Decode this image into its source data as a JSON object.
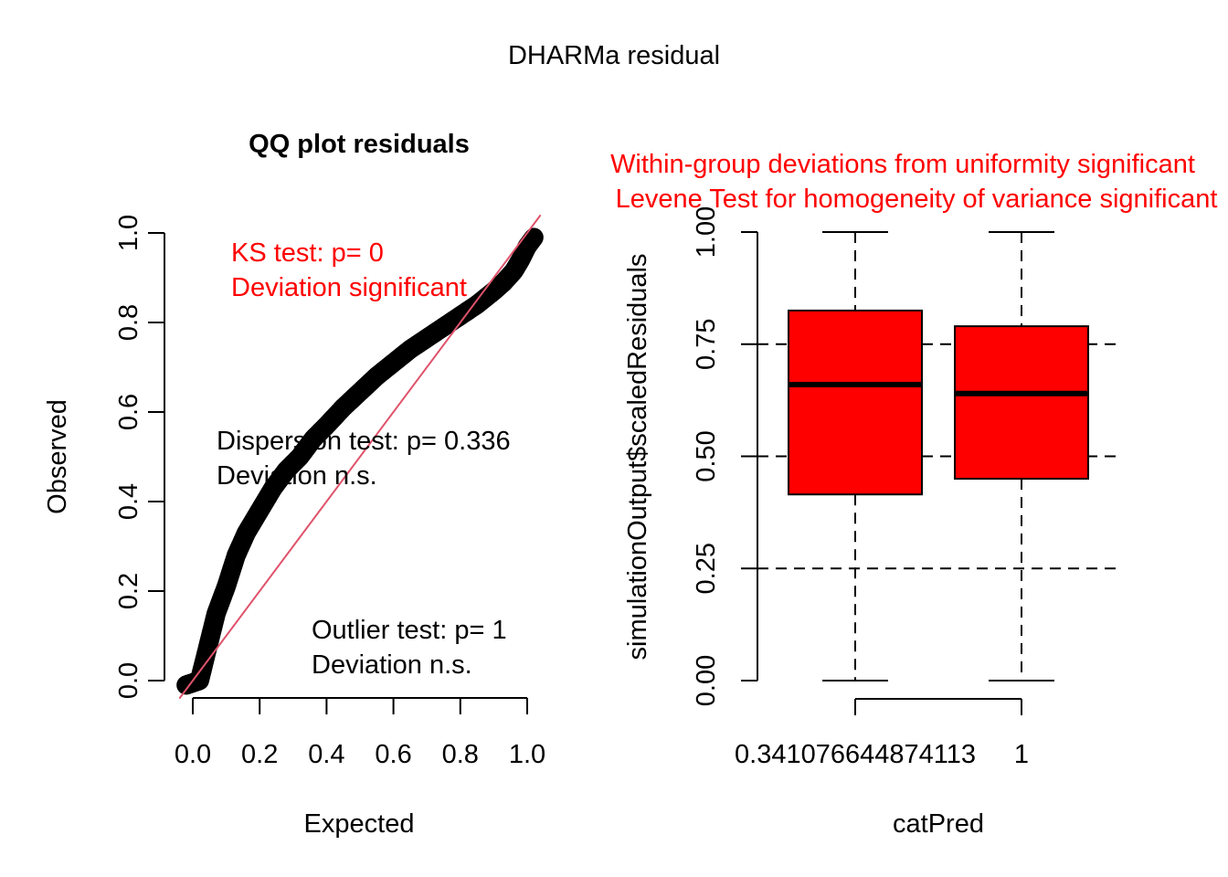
{
  "figure_title": "DHARMa residual",
  "chart_data": [
    {
      "type": "scatter",
      "title": "QQ plot residuals",
      "xlabel": "Expected",
      "ylabel": "Observed",
      "xlim": [
        -0.04,
        1.04
      ],
      "ylim": [
        -0.04,
        1.04
      ],
      "x_ticks": [
        "0.0",
        "0.2",
        "0.4",
        "0.6",
        "0.8",
        "1.0"
      ],
      "y_ticks": [
        "0.0",
        "0.2",
        "0.4",
        "0.6",
        "0.8",
        "1.0"
      ],
      "reference_line": {
        "x": [
          -0.04,
          1.04
        ],
        "y": [
          -0.04,
          1.04
        ],
        "color": "#DF536B"
      },
      "points_color": "#000000",
      "series": [
        {
          "x": [
            -0.02,
            0.0,
            0.02,
            0.03,
            0.05,
            0.07,
            0.1,
            0.13,
            0.16,
            0.2,
            0.24,
            0.28,
            0.32,
            0.36,
            0.4,
            0.45,
            0.5,
            0.55,
            0.6,
            0.65,
            0.7,
            0.75,
            0.8,
            0.85,
            0.9,
            0.93,
            0.96,
            0.98,
            1.0,
            1.02
          ],
          "y": [
            -0.01,
            -0.005,
            0.0,
            0.03,
            0.09,
            0.15,
            0.21,
            0.28,
            0.33,
            0.38,
            0.43,
            0.47,
            0.5,
            0.54,
            0.57,
            0.61,
            0.645,
            0.68,
            0.71,
            0.74,
            0.765,
            0.79,
            0.815,
            0.84,
            0.87,
            0.89,
            0.915,
            0.94,
            0.97,
            0.99
          ]
        }
      ],
      "annotations": [
        {
          "lines": [
            "KS test: p= 0",
            "Deviation  significant"
          ],
          "color": "#FF0000"
        },
        {
          "lines": [
            "Dispersion test: p= 0.336",
            "Deviation  n.s."
          ],
          "color": "#000000"
        },
        {
          "lines": [
            "Outlier test: p= 1",
            "Deviation  n.s."
          ],
          "color": "#000000"
        }
      ]
    },
    {
      "type": "box",
      "title_lines": [
        "Within-group deviations from uniformity significant",
        "Levene Test for homogeneity of variance significant"
      ],
      "title_color": "#FF0000",
      "xlabel": "catPred",
      "ylabel": "simulationOutput$scaledResiduals",
      "ylim": [
        0,
        1
      ],
      "y_ticks": [
        "0.00",
        "0.25",
        "0.50",
        "0.75",
        "1.00"
      ],
      "y_tick_values": [
        0,
        0.25,
        0.5,
        0.75,
        1
      ],
      "reference_lines": [
        0.25,
        0.5,
        0.75
      ],
      "box_color": "#FF0000",
      "categories": [
        "0.341076644874113",
        "1"
      ],
      "boxes": [
        {
          "min": 0.0,
          "q1": 0.415,
          "median": 0.66,
          "q3": 0.825,
          "max": 1.0
        },
        {
          "min": 0.0,
          "q1": 0.45,
          "median": 0.64,
          "q3": 0.79,
          "max": 1.0
        }
      ]
    }
  ]
}
